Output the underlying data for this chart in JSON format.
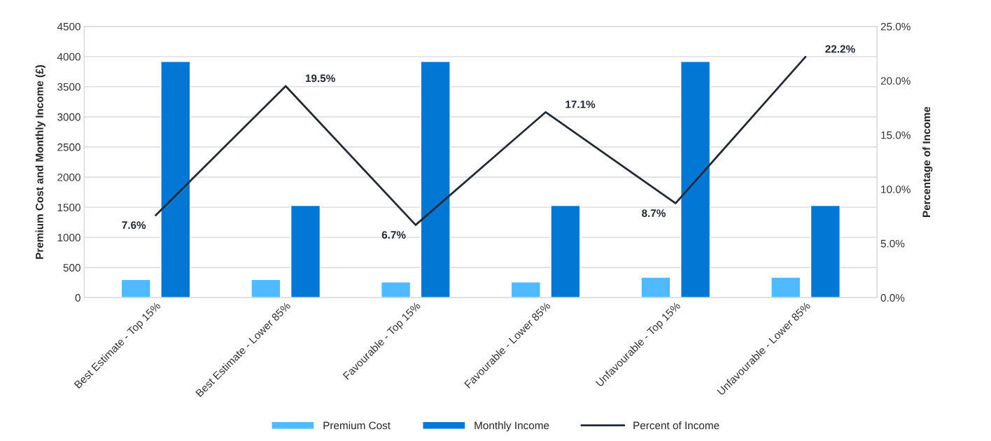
{
  "chart_data": {
    "type": "bar",
    "categories": [
      "Best Estimate - Top 15%",
      "Best Estimate - Lower 85%",
      "Favourable - Top 15%",
      "Favourable - Lower 85%",
      "Unfavourable - Top 15%",
      "Unfavourable - Lower 85%"
    ],
    "series": [
      {
        "name": "Premium Cost",
        "color": "#4fbaff",
        "values": [
          300,
          300,
          260,
          260,
          340,
          340
        ]
      },
      {
        "name": "Monthly Income",
        "color": "#0277d4",
        "values": [
          3920,
          1530,
          3920,
          1530,
          3920,
          1530
        ]
      },
      {
        "name": "Percent of Income",
        "type": "line",
        "axis": "y2",
        "color": "#222a35",
        "values": [
          7.6,
          19.5,
          6.7,
          17.1,
          8.7,
          22.2
        ],
        "value_labels": [
          "7.6%",
          "19.5%",
          "6.7%",
          "17.1%",
          "8.7%",
          "22.2%"
        ]
      }
    ],
    "ylabel": "Premium Cost and Monthly Income (£)",
    "y2label": "Percentage of Income",
    "ylim": [
      0,
      4500
    ],
    "yticks": [
      0,
      500,
      1000,
      1500,
      2000,
      2500,
      3000,
      3500,
      4000,
      4500
    ],
    "y2lim": [
      0,
      25
    ],
    "y2ticks": [
      {
        "value": 0,
        "label": "0.0%"
      },
      {
        "value": 5,
        "label": "5.0%"
      },
      {
        "value": 10,
        "label": "10.0%"
      },
      {
        "value": 15,
        "label": "15.0%"
      },
      {
        "value": 20,
        "label": "20.0%"
      },
      {
        "value": 25,
        "label": "25.0%"
      }
    ],
    "grid": "y",
    "legend": "bottom",
    "marker": "none",
    "line_style": "solid"
  }
}
